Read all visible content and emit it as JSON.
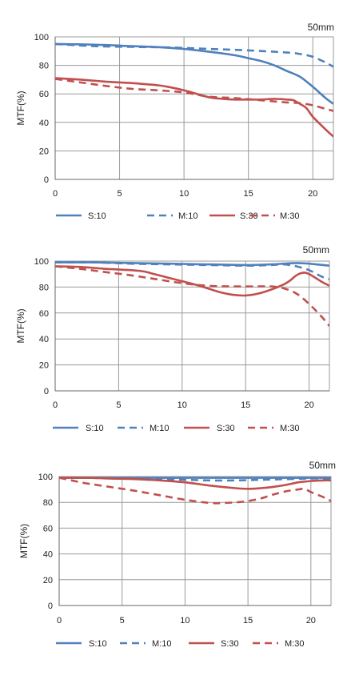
{
  "colors": {
    "blue": "#4F81BD",
    "red": "#C0504D",
    "grid": "#9a9a9a"
  },
  "chart_data": [
    {
      "type": "line",
      "title": "50mm",
      "ylabel": "MTF(%)",
      "xlabel": "",
      "xlim": [
        0,
        21.6
      ],
      "ylim": [
        0,
        100
      ],
      "xticks": [
        0,
        5,
        10,
        15,
        20
      ],
      "yticks": [
        0,
        20,
        40,
        60,
        80,
        100
      ],
      "grid": "on",
      "legend_position": "bottom",
      "series": [
        {
          "name": "S:10",
          "color": "#4F81BD",
          "dash": "solid",
          "x": [
            0,
            3,
            6,
            8,
            10,
            12,
            14,
            15,
            16,
            17,
            18,
            19,
            20,
            21,
            21.6
          ],
          "y": [
            95,
            94.5,
            93.5,
            92.8,
            91.5,
            89.5,
            87,
            85,
            83,
            80,
            76,
            72,
            65,
            57,
            53
          ]
        },
        {
          "name": "M:10",
          "color": "#4F81BD",
          "dash": "dashed",
          "x": [
            0,
            3,
            6,
            9,
            12,
            15,
            18,
            19,
            20,
            21,
            21.6
          ],
          "y": [
            95,
            93.5,
            93,
            92.5,
            91.5,
            90.5,
            89,
            88,
            86,
            82,
            79
          ]
        },
        {
          "name": "S:30",
          "color": "#C0504D",
          "dash": "solid",
          "x": [
            0,
            2,
            4,
            6,
            8,
            9,
            10,
            11,
            12,
            13,
            14,
            15,
            16,
            17,
            18,
            18.5,
            19,
            19.5,
            20,
            21,
            21.6
          ],
          "y": [
            71,
            70,
            68.5,
            67.5,
            66,
            64.5,
            62.5,
            60,
            57.5,
            56.5,
            56,
            56,
            56,
            56.5,
            56,
            55.5,
            53,
            50,
            44,
            35,
            30
          ]
        },
        {
          "name": "M:30",
          "color": "#C0504D",
          "dash": "dashed",
          "x": [
            0,
            2,
            4,
            6,
            8,
            10,
            12,
            14,
            16,
            18,
            19,
            20,
            21,
            21.6
          ],
          "y": [
            70.5,
            68,
            65.5,
            63.5,
            62.5,
            61,
            58,
            57,
            55.5,
            54,
            53.5,
            52,
            49.5,
            48
          ]
        }
      ]
    },
    {
      "type": "line",
      "title": "50mm",
      "ylabel": "MTF(%)",
      "xlabel": "",
      "xlim": [
        0,
        21.6
      ],
      "ylim": [
        0,
        100
      ],
      "xticks": [
        0,
        5,
        10,
        15,
        20
      ],
      "yticks": [
        0,
        20,
        40,
        60,
        80,
        100
      ],
      "grid": "on",
      "legend_position": "bottom",
      "series": [
        {
          "name": "S:10",
          "color": "#4F81BD",
          "dash": "solid",
          "x": [
            0,
            3,
            6,
            9,
            12,
            15,
            17,
            18,
            19,
            20,
            21.6
          ],
          "y": [
            99,
            99,
            98.5,
            98,
            97.5,
            97,
            97.5,
            98,
            98.5,
            98,
            96.5
          ]
        },
        {
          "name": "M:10",
          "color": "#4F81BD",
          "dash": "dashed",
          "x": [
            0,
            3,
            6,
            9,
            12,
            15,
            17,
            18,
            19,
            20,
            21,
            21.6
          ],
          "y": [
            99,
            99,
            98,
            97.5,
            97,
            96.5,
            97,
            97.5,
            96,
            93,
            88,
            86
          ]
        },
        {
          "name": "S:30",
          "color": "#C0504D",
          "dash": "solid",
          "x": [
            0,
            2,
            4,
            6,
            7,
            8,
            9,
            10,
            11,
            12,
            13,
            14,
            15,
            16,
            17,
            18,
            18.5,
            19,
            19.5,
            20,
            21,
            21.6
          ],
          "y": [
            96,
            95.5,
            94,
            93,
            92,
            89.5,
            87,
            84.5,
            82,
            79,
            76,
            74,
            73.5,
            75,
            78,
            82,
            85,
            89,
            91,
            90,
            84,
            81
          ]
        },
        {
          "name": "M:30",
          "color": "#C0504D",
          "dash": "dashed",
          "x": [
            0,
            2,
            4,
            6,
            8,
            10,
            12,
            14,
            16,
            17,
            18,
            19,
            20,
            21,
            21.6
          ],
          "y": [
            96,
            94,
            91.5,
            89,
            86,
            83,
            81,
            80.5,
            80.5,
            80.5,
            79,
            75,
            67,
            57,
            50
          ]
        }
      ]
    },
    {
      "type": "line",
      "title": "50mm",
      "ylabel": "MTF(%)",
      "xlabel": "",
      "xlim": [
        0,
        21.6
      ],
      "ylim": [
        0,
        100
      ],
      "xticks": [
        0,
        5,
        10,
        15,
        20
      ],
      "yticks": [
        0,
        20,
        40,
        60,
        80,
        100
      ],
      "grid": "on",
      "legend_position": "bottom",
      "series": [
        {
          "name": "S:10",
          "color": "#4F81BD",
          "dash": "solid",
          "x": [
            0,
            5,
            10,
            15,
            20,
            21.6
          ],
          "y": [
            99,
            99,
            99,
            99,
            99,
            99
          ]
        },
        {
          "name": "M:10",
          "color": "#4F81BD",
          "dash": "dashed",
          "x": [
            0,
            3,
            6,
            8,
            10,
            12,
            14,
            16,
            18,
            20,
            21.6
          ],
          "y": [
            99,
            99,
            98.5,
            98,
            97.5,
            97,
            97,
            97.5,
            98,
            98.5,
            98.5
          ]
        },
        {
          "name": "S:30",
          "color": "#C0504D",
          "dash": "solid",
          "x": [
            0,
            2,
            4,
            6,
            8,
            10,
            12,
            14,
            15,
            16,
            17,
            18,
            19,
            20,
            21,
            21.6
          ],
          "y": [
            99,
            99,
            98.5,
            98,
            97,
            95.5,
            93,
            91,
            90.5,
            91,
            92,
            93.5,
            95.5,
            96.5,
            97,
            97
          ]
        },
        {
          "name": "M:30",
          "color": "#C0504D",
          "dash": "dashed",
          "x": [
            0,
            1,
            2,
            4,
            6,
            8,
            10,
            12,
            13,
            14,
            15,
            16,
            17,
            18,
            19,
            19.5,
            20,
            21,
            21.6
          ],
          "y": [
            99,
            97,
            95,
            92,
            89,
            85.5,
            82,
            79.5,
            79.5,
            80,
            81,
            83,
            86,
            88.5,
            90,
            90.5,
            88,
            84,
            81
          ]
        }
      ]
    }
  ]
}
